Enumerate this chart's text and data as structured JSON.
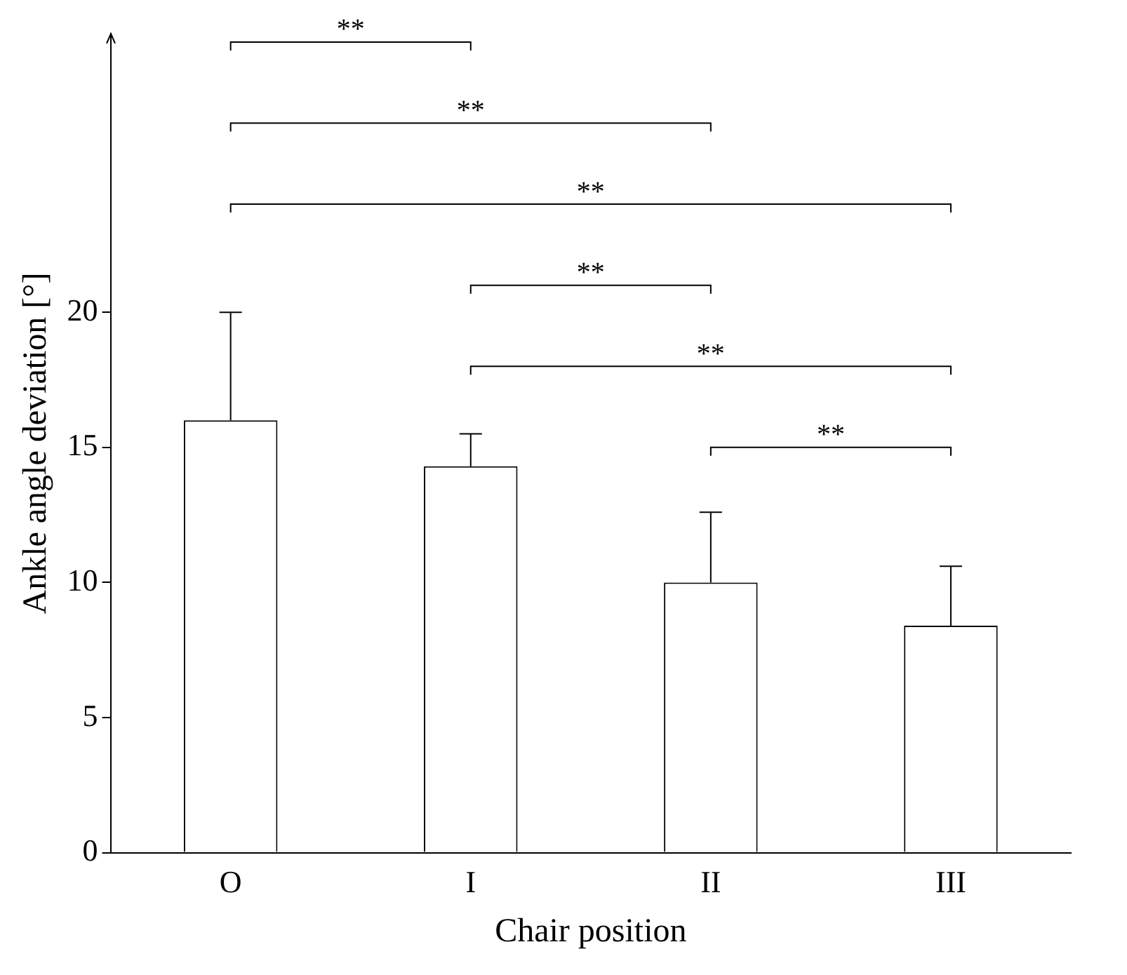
{
  "chart_data": {
    "type": "bar",
    "xlabel": "Chair position",
    "ylabel": "Ankle angle deviation [°]",
    "categories": [
      "O",
      "I",
      "II",
      "III"
    ],
    "values": [
      16.0,
      14.3,
      10.0,
      8.4
    ],
    "errors": [
      [
        16.0,
        20.0
      ],
      [
        14.3,
        15.5
      ],
      [
        10.0,
        12.6
      ],
      [
        8.4,
        10.6
      ]
    ],
    "color": "#ffffff",
    "ylim": [
      0,
      30.3
    ],
    "yticks": [
      0,
      5,
      10,
      15,
      20
    ],
    "grid": false,
    "legend": false,
    "annotations": [
      "**",
      "**",
      "**",
      "**",
      "**",
      "**"
    ]
  }
}
